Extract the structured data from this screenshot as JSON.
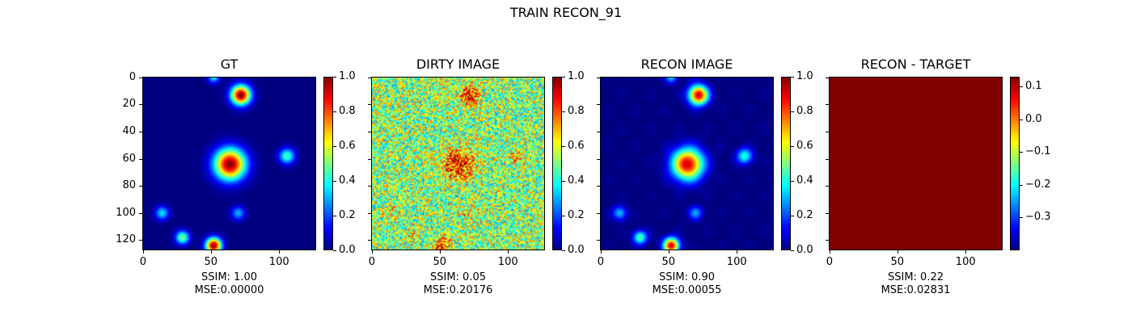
{
  "figure": {
    "title": "TRAIN RECON_91"
  },
  "chart_data": [
    {
      "type": "heatmap",
      "title": "GT",
      "colormap": "jet",
      "image_size": [
        128,
        128
      ],
      "xticks": [
        "0",
        "50",
        "100"
      ],
      "yticks": [
        "0",
        "20",
        "40",
        "60",
        "80",
        "100",
        "120"
      ],
      "colorbar": {
        "range": [
          0.0,
          1.0
        ],
        "ticks": [
          "0.0",
          "0.2",
          "0.4",
          "0.6",
          "0.8",
          "1.0"
        ]
      },
      "metrics": {
        "ssim_label": "SSIM: 1.00",
        "mse_label": "MSE:0.00000"
      }
    },
    {
      "type": "heatmap",
      "title": "DIRTY IMAGE",
      "colormap": "jet",
      "image_size": [
        128,
        128
      ],
      "xticks": [
        "0",
        "50",
        "100"
      ],
      "colorbar": {
        "range": [
          0.0,
          1.0
        ],
        "ticks": [
          "0.0",
          "0.2",
          "0.4",
          "0.6",
          "0.8",
          "1.0"
        ]
      },
      "metrics": {
        "ssim_label": "SSIM: 0.05",
        "mse_label": "MSE:0.20176"
      }
    },
    {
      "type": "heatmap",
      "title": "RECON IMAGE",
      "colormap": "jet",
      "image_size": [
        128,
        128
      ],
      "xticks": [
        "0",
        "50",
        "100"
      ],
      "colorbar": {
        "range": [
          0.0,
          1.0
        ],
        "ticks": [
          "0.0",
          "0.2",
          "0.4",
          "0.6",
          "0.8",
          "1.0"
        ]
      },
      "metrics": {
        "ssim_label": "SSIM: 0.90",
        "mse_label": "MSE:0.00055"
      }
    },
    {
      "type": "heatmap",
      "title": "RECON - TARGET",
      "colormap": "jet",
      "image_size": [
        128,
        128
      ],
      "xticks": [
        "0",
        "50",
        "100"
      ],
      "colorbar": {
        "range": [
          -0.4,
          0.13
        ],
        "ticks": [
          "0.1",
          "0.0",
          "−0.1",
          "−0.2",
          "−0.3"
        ]
      },
      "metrics": {
        "ssim_label": "SSIM: 0.22",
        "mse_label": "MSE:0.02831"
      }
    }
  ],
  "sources": [
    {
      "x": 52,
      "y": 0,
      "amp": 0.35,
      "s": 3
    },
    {
      "x": 72,
      "y": 13,
      "amp": 1.0,
      "s": 5
    },
    {
      "x": 64,
      "y": 64,
      "amp": 1.0,
      "s": 8
    },
    {
      "x": 106,
      "y": 58,
      "amp": 0.45,
      "s": 4
    },
    {
      "x": 14,
      "y": 100,
      "amp": 0.35,
      "s": 3.5
    },
    {
      "x": 70,
      "y": 100,
      "amp": 0.3,
      "s": 3.5
    },
    {
      "x": 29,
      "y": 118,
      "amp": 0.5,
      "s": 3.5
    },
    {
      "x": 52,
      "y": 124,
      "amp": 1.0,
      "s": 4
    }
  ]
}
